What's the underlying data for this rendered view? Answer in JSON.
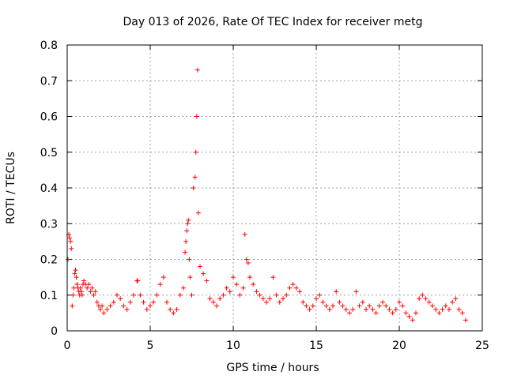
{
  "chart_data": {
    "type": "scatter",
    "title": "Day 013 of 2026, Rate Of TEC Index for receiver metg",
    "xlabel": "GPS time / hours",
    "ylabel": "ROTI / TECUs",
    "xlim": [
      0,
      25
    ],
    "ylim": [
      0,
      0.8
    ],
    "xticks": [
      0,
      5,
      10,
      15,
      20,
      25
    ],
    "xtick_labels": [
      "0",
      "5",
      "10",
      "15",
      "20",
      "25"
    ],
    "yticks": [
      0,
      0.1,
      0.2,
      0.3,
      0.4,
      0.5,
      0.6,
      0.7,
      0.8
    ],
    "ytick_labels": [
      "0",
      "0.1",
      "0.2",
      "0.3",
      "0.4",
      "0.5",
      "0.6",
      "0.7",
      "0.8"
    ],
    "grid": true,
    "marker": "+",
    "color": "#ff0000",
    "series": [
      {
        "name": "ROTI",
        "x": [
          0.05,
          0.1,
          0.15,
          0.2,
          0.25,
          0.3,
          0.35,
          0.4,
          0.45,
          0.5,
          0.55,
          0.6,
          0.65,
          0.7,
          0.75,
          0.8,
          0.85,
          0.9,
          0.95,
          1.0,
          1.1,
          1.2,
          1.3,
          1.4,
          1.5,
          1.6,
          1.7,
          1.8,
          1.9,
          2.0,
          2.1,
          2.2,
          2.4,
          2.6,
          2.8,
          3.0,
          3.2,
          3.4,
          3.6,
          3.8,
          4.0,
          4.2,
          4.25,
          4.4,
          4.6,
          4.8,
          5.0,
          5.2,
          5.4,
          5.6,
          5.8,
          6.0,
          6.2,
          6.4,
          6.6,
          6.8,
          7.0,
          7.1,
          7.15,
          7.2,
          7.25,
          7.3,
          7.35,
          7.4,
          7.5,
          7.6,
          7.7,
          7.75,
          7.8,
          7.85,
          7.9,
          8.0,
          8.2,
          8.4,
          8.6,
          8.8,
          9.0,
          9.2,
          9.4,
          9.6,
          9.8,
          10.0,
          10.2,
          10.4,
          10.6,
          10.7,
          10.8,
          10.9,
          11.0,
          11.2,
          11.4,
          11.6,
          11.8,
          12.0,
          12.2,
          12.4,
          12.6,
          12.8,
          13.0,
          13.2,
          13.4,
          13.6,
          13.8,
          14.0,
          14.2,
          14.4,
          14.6,
          14.8,
          15.0,
          15.2,
          15.4,
          15.6,
          15.8,
          16.0,
          16.2,
          16.4,
          16.6,
          16.8,
          17.0,
          17.2,
          17.4,
          17.6,
          17.8,
          18.0,
          18.2,
          18.4,
          18.6,
          18.8,
          19.0,
          19.2,
          19.4,
          19.6,
          19.8,
          20.0,
          20.2,
          20.4,
          20.6,
          20.8,
          21.0,
          21.2,
          21.4,
          21.6,
          21.8,
          22.0,
          22.2,
          22.4,
          22.6,
          22.8,
          23.0,
          23.2,
          23.4,
          23.6,
          23.8,
          24.0
        ],
        "y": [
          0.2,
          0.27,
          0.26,
          0.25,
          0.23,
          0.07,
          0.1,
          0.12,
          0.16,
          0.17,
          0.15,
          0.13,
          0.12,
          0.11,
          0.1,
          0.12,
          0.11,
          0.1,
          0.13,
          0.14,
          0.13,
          0.12,
          0.13,
          0.11,
          0.12,
          0.1,
          0.11,
          0.08,
          0.07,
          0.06,
          0.07,
          0.05,
          0.06,
          0.07,
          0.08,
          0.1,
          0.09,
          0.07,
          0.06,
          0.08,
          0.1,
          0.14,
          0.14,
          0.1,
          0.08,
          0.06,
          0.07,
          0.08,
          0.1,
          0.13,
          0.15,
          0.08,
          0.06,
          0.05,
          0.06,
          0.1,
          0.12,
          0.22,
          0.25,
          0.28,
          0.3,
          0.31,
          0.2,
          0.15,
          0.1,
          0.4,
          0.43,
          0.5,
          0.6,
          0.73,
          0.33,
          0.18,
          0.16,
          0.14,
          0.09,
          0.08,
          0.07,
          0.09,
          0.1,
          0.12,
          0.11,
          0.15,
          0.13,
          0.1,
          0.12,
          0.27,
          0.2,
          0.19,
          0.15,
          0.13,
          0.11,
          0.1,
          0.09,
          0.08,
          0.09,
          0.15,
          0.1,
          0.08,
          0.09,
          0.1,
          0.12,
          0.13,
          0.12,
          0.11,
          0.08,
          0.07,
          0.06,
          0.07,
          0.09,
          0.1,
          0.08,
          0.07,
          0.06,
          0.07,
          0.11,
          0.08,
          0.07,
          0.06,
          0.05,
          0.06,
          0.11,
          0.07,
          0.08,
          0.06,
          0.07,
          0.06,
          0.05,
          0.07,
          0.08,
          0.07,
          0.06,
          0.05,
          0.06,
          0.08,
          0.07,
          0.05,
          0.04,
          0.03,
          0.05,
          0.09,
          0.1,
          0.09,
          0.08,
          0.07,
          0.06,
          0.05,
          0.06,
          0.07,
          0.06,
          0.08,
          0.09,
          0.06,
          0.05,
          0.03
        ]
      }
    ]
  }
}
